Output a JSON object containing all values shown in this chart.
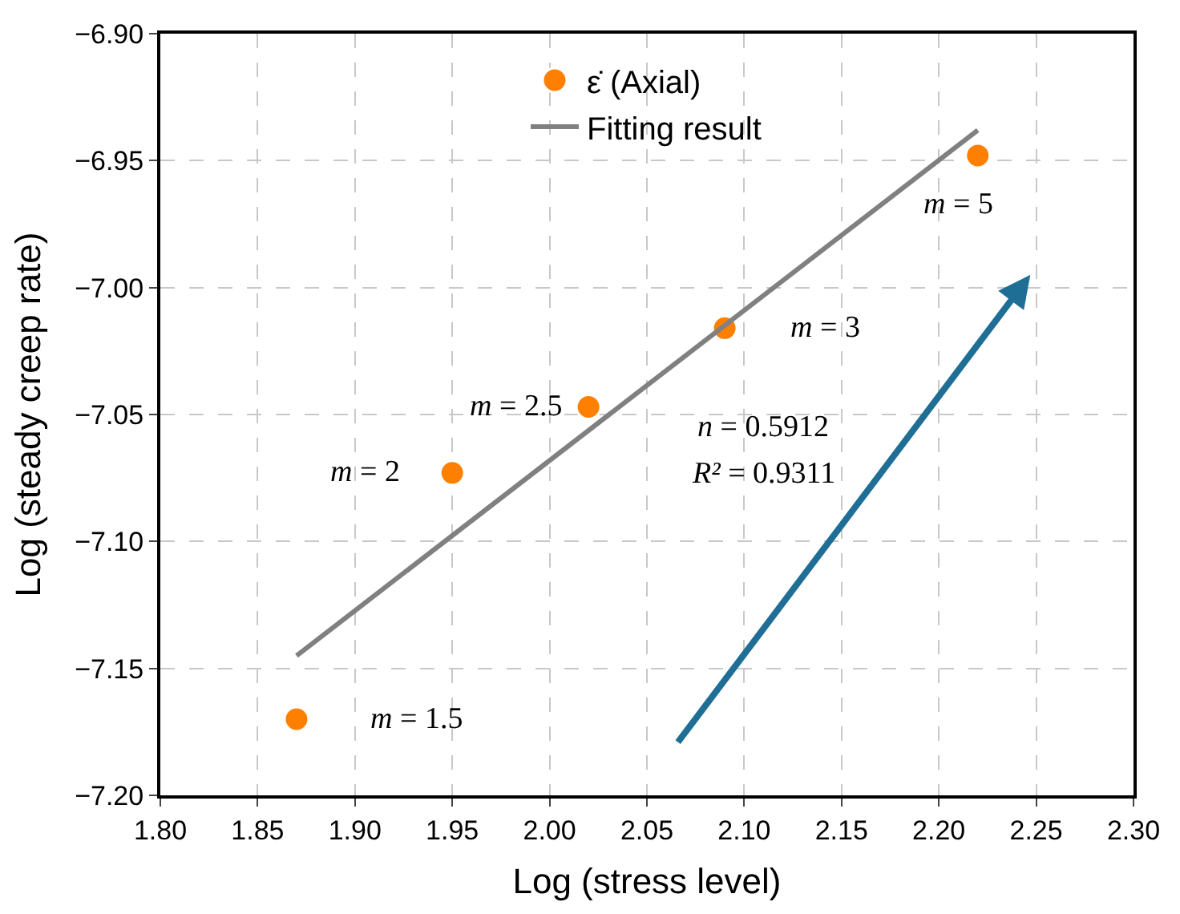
{
  "chart_data": {
    "type": "scatter",
    "xlabel": "Log (stress level)",
    "ylabel": "Log (steady creep rate)",
    "xlim": [
      1.8,
      2.3
    ],
    "xticks": [
      {
        "value": 1.8,
        "label": "1.80"
      },
      {
        "value": 1.85,
        "label": "1.85"
      },
      {
        "value": 1.9,
        "label": "1.90"
      },
      {
        "value": 1.95,
        "label": "1.95"
      },
      {
        "value": 2.0,
        "label": "2.00"
      },
      {
        "value": 2.05,
        "label": "2.05"
      },
      {
        "value": 2.1,
        "label": "2.10"
      },
      {
        "value": 2.15,
        "label": "2.15"
      },
      {
        "value": 2.2,
        "label": "2.20"
      },
      {
        "value": 2.25,
        "label": "2.25"
      },
      {
        "value": 2.3,
        "label": "2.30"
      }
    ],
    "ylim": [
      -7.2,
      -6.9
    ],
    "yticks": [
      {
        "value": -7.2,
        "label": "−7.20"
      },
      {
        "value": -7.15,
        "label": "−7.15"
      },
      {
        "value": -7.1,
        "label": "−7.10"
      },
      {
        "value": -7.05,
        "label": "−7.05"
      },
      {
        "value": -7.0,
        "label": "−7.00"
      },
      {
        "value": -6.95,
        "label": "−6.95"
      },
      {
        "value": -6.9,
        "label": "−6.90"
      }
    ],
    "grid": true,
    "legend": "top",
    "series": [
      {
        "name": "ε̇ (Axial)",
        "marker": "circle",
        "color": "#ff8000",
        "x": [
          1.87,
          1.95,
          2.02,
          2.09,
          2.22
        ],
        "values": [
          -7.17,
          -7.073,
          -7.047,
          -7.016,
          -6.948
        ]
      },
      {
        "name": "Fitting result",
        "type": "line",
        "color": "#808080",
        "x": [
          1.87,
          2.22
        ],
        "values": [
          -7.145,
          -6.938
        ]
      }
    ],
    "annotations": [
      {
        "text": "m = 1.5",
        "x": 1.87,
        "y": -7.17
      },
      {
        "text": "m = 2",
        "x": 1.95,
        "y": -7.073
      },
      {
        "text": "m = 2.5",
        "x": 2.02,
        "y": -7.047
      },
      {
        "text": "m = 3",
        "x": 2.09,
        "y": -7.016
      },
      {
        "text": "m = 5",
        "x": 2.22,
        "y": -6.948
      },
      "n = 0.5912",
      "R² = 0.9311"
    ]
  }
}
